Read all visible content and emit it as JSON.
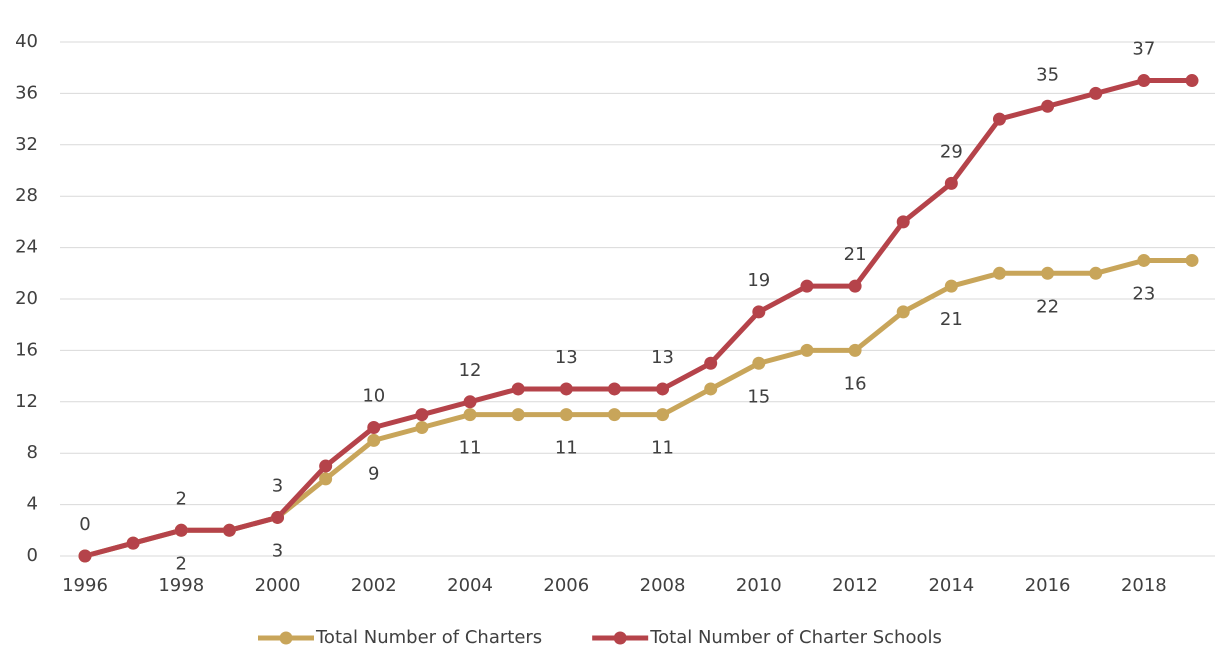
{
  "chart_data": {
    "type": "line",
    "x": [
      1996,
      1997,
      1998,
      1999,
      2000,
      2001,
      2002,
      2003,
      2004,
      2005,
      2006,
      2007,
      2008,
      2009,
      2010,
      2011,
      2012,
      2013,
      2014,
      2015,
      2016,
      2017,
      2018,
      2019
    ],
    "series": [
      {
        "name": "Total Number of Charters",
        "color": "#c8a55a",
        "values": [
          0,
          1,
          2,
          2,
          3,
          6,
          9,
          10,
          11,
          11,
          11,
          11,
          11,
          13,
          15,
          16,
          16,
          19,
          21,
          22,
          22,
          22,
          23,
          23
        ]
      },
      {
        "name": "Total Number of Charter Schools",
        "color": "#b5434a",
        "values": [
          0,
          1,
          2,
          2,
          3,
          7,
          10,
          11,
          12,
          13,
          13,
          13,
          13,
          15,
          19,
          21,
          21,
          26,
          29,
          34,
          35,
          36,
          37,
          37
        ]
      }
    ],
    "xlim": [
      1996,
      2019
    ],
    "xticks": [
      1996,
      1998,
      2000,
      2002,
      2004,
      2006,
      2008,
      2010,
      2012,
      2014,
      2016,
      2018
    ],
    "ylim": [
      0,
      40
    ],
    "yticks": [
      0,
      4,
      8,
      12,
      16,
      20,
      24,
      28,
      32,
      36,
      40
    ],
    "grid": true,
    "legend": "bottom"
  }
}
